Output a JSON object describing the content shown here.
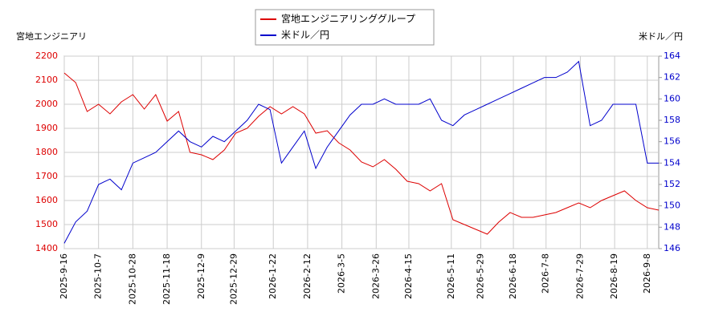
{
  "chart_data": {
    "type": "line",
    "y_label": "宮地エンジニアリ",
    "y2_label": "米ドル／円",
    "x": [
      "2025-9-16",
      "2025-9-23",
      "2025-9-30",
      "2025-10-7",
      "2025-10-14",
      "2025-10-21",
      "2025-10-28",
      "2025-11-4",
      "2025-11-11",
      "2025-11-18",
      "2025-11-25",
      "2025-12-2",
      "2025-12-9",
      "2025-12-16",
      "2025-12-23",
      "2025-12-30",
      "2026-1-6",
      "2026-1-13",
      "2026-1-20",
      "2026-1-27",
      "2026-2-3",
      "2026-2-10",
      "2026-2-17",
      "2026-2-24",
      "2026-3-3",
      "2026-3-10",
      "2026-3-17",
      "2026-3-24",
      "2026-3-31",
      "2026-4-7",
      "2026-4-14",
      "2026-4-21",
      "2026-4-28",
      "2026-5-5",
      "2026-5-12",
      "2026-5-19",
      "2026-5-26",
      "2026-6-2",
      "2026-6-9",
      "2026-6-16",
      "2026-6-23",
      "2026-6-30",
      "2026-7-7",
      "2026-7-14",
      "2026-7-21",
      "2026-7-28",
      "2026-8-4",
      "2026-8-11",
      "2026-8-18",
      "2026-8-25",
      "2026-9-1",
      "2026-9-8",
      "2026-9-15"
    ],
    "series": [
      {
        "name": "宮地エンジニアリンググループ",
        "color": "#dd0000",
        "axis": "y",
        "values": [
          2130,
          2090,
          1970,
          2000,
          1960,
          2010,
          2040,
          1980,
          2040,
          1930,
          1970,
          1800,
          1790,
          1770,
          1810,
          1880,
          1900,
          1950,
          1990,
          1960,
          1990,
          1960,
          1880,
          1890,
          1840,
          1810,
          1760,
          1740,
          1770,
          1730,
          1680,
          1670,
          1640,
          1670,
          1520,
          1500,
          1480,
          1460,
          1510,
          1550,
          1530,
          1530,
          1540,
          1550,
          1570,
          1590,
          1570,
          1600,
          1620,
          1640,
          1600,
          1570,
          1560
        ]
      },
      {
        "name": "米ドル／円",
        "color": "#0000cc",
        "axis": "y2",
        "values": [
          146.5,
          148.5,
          149.5,
          152,
          152.5,
          151.5,
          154,
          154.5,
          155,
          156,
          157,
          156,
          155.5,
          156.5,
          156,
          157,
          158,
          159.5,
          159,
          154,
          155.5,
          157,
          153.5,
          155.5,
          157,
          158.5,
          159.5,
          159.5,
          160,
          159.5,
          159.5,
          159.5,
          160,
          158,
          157.5,
          158.5,
          159,
          159.5,
          160,
          160.5,
          161,
          161.5,
          162,
          162,
          162.5,
          163.5,
          157.5,
          158,
          159.5,
          159.5,
          159.5,
          154,
          154
        ]
      }
    ],
    "xlim": [
      "2025-9-16",
      "2026-9-15"
    ],
    "xticks": [
      "2025-9-16",
      "2025-10-7",
      "2025-10-28",
      "2025-11-18",
      "2025-12-9",
      "2025-12-29",
      "2026-1-22",
      "2026-2-12",
      "2026-3-5",
      "2026-3-26",
      "2026-4-15",
      "2026-5-11",
      "2026-5-29",
      "2026-6-18",
      "2026-7-8",
      "2026-7-29",
      "2026-8-19",
      "2026-9-8"
    ],
    "ylim": [
      1400,
      2200
    ],
    "yticks": [
      1400,
      1500,
      1600,
      1700,
      1800,
      1900,
      2000,
      2100,
      2200
    ],
    "y2lim": [
      146,
      164
    ],
    "y2ticks": [
      146,
      148,
      150,
      152,
      154,
      156,
      158,
      160,
      162,
      164
    ],
    "grid": true
  }
}
